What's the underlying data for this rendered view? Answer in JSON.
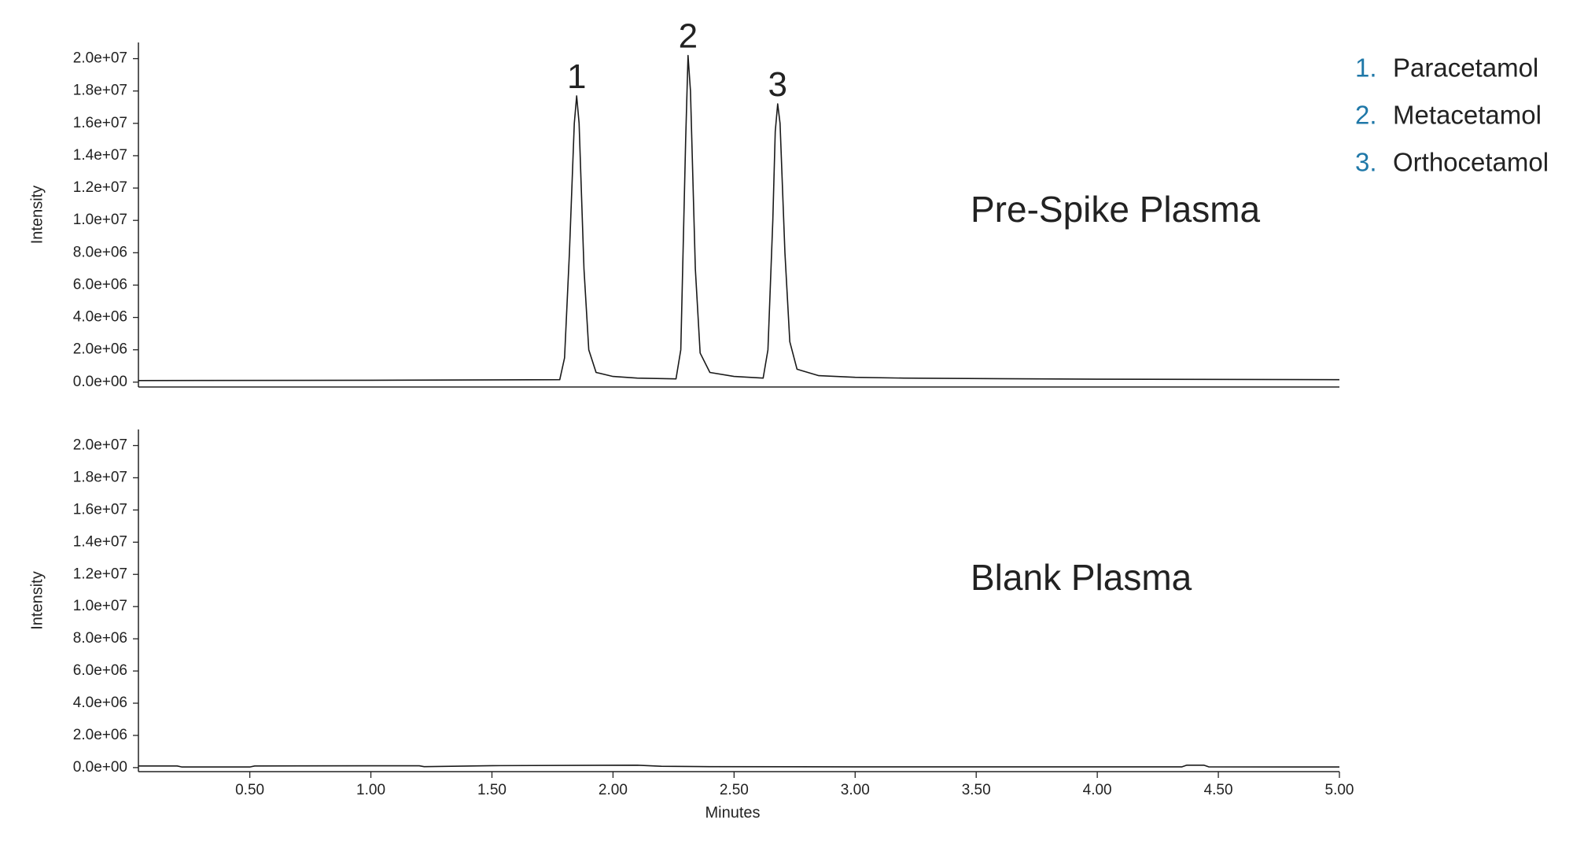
{
  "chart_data": [
    {
      "type": "line",
      "panel_label": "Pre-Spike Plasma",
      "ylabel": "Intensity",
      "xlim": [
        0.04,
        5.0
      ],
      "ylim": [
        -300000,
        21000000
      ],
      "yticks": [
        {
          "value": 0,
          "label": "0.0e+00"
        },
        {
          "value": 2000000,
          "label": "2.0e+06"
        },
        {
          "value": 4000000,
          "label": "4.0e+06"
        },
        {
          "value": 6000000,
          "label": "6.0e+06"
        },
        {
          "value": 8000000,
          "label": "8.0e+06"
        },
        {
          "value": 10000000,
          "label": "1.0e+07"
        },
        {
          "value": 12000000,
          "label": "1.2e+07"
        },
        {
          "value": 14000000,
          "label": "1.4e+07"
        },
        {
          "value": 16000000,
          "label": "1.6e+07"
        },
        {
          "value": 18000000,
          "label": "1.8e+07"
        },
        {
          "value": 20000000,
          "label": "2.0e+07"
        }
      ],
      "series": [
        {
          "color": "#1a1a1a",
          "x": [
            0.04,
            1.0,
            1.78,
            1.8,
            1.82,
            1.84,
            1.85,
            1.86,
            1.88,
            1.9,
            1.93,
            2.0,
            2.1,
            2.26,
            2.28,
            2.3,
            2.31,
            2.32,
            2.34,
            2.36,
            2.4,
            2.5,
            2.62,
            2.64,
            2.66,
            2.67,
            2.68,
            2.69,
            2.71,
            2.73,
            2.76,
            2.85,
            3.0,
            3.2,
            4.0,
            5.0
          ],
          "values": [
            100000,
            120000,
            150000,
            1500000,
            8000000,
            16000000,
            17700000,
            16000000,
            7000000,
            2000000,
            600000,
            350000,
            250000,
            200000,
            2000000,
            15000000,
            20200000,
            18000000,
            7000000,
            1800000,
            600000,
            350000,
            250000,
            2000000,
            10000000,
            15500000,
            17200000,
            16000000,
            8000000,
            2500000,
            800000,
            400000,
            300000,
            250000,
            180000,
            150000
          ]
        }
      ],
      "annotations": [
        {
          "text": "1",
          "x": 1.85,
          "y": 17700000
        },
        {
          "text": "2",
          "x": 2.31,
          "y": 20200000
        },
        {
          "text": "3",
          "x": 2.68,
          "y": 17200000
        }
      ],
      "legend_number_color": "#1f78a8",
      "legend": [
        {
          "number": "1.",
          "name": "Paracetamol"
        },
        {
          "number": "2.",
          "name": "Metacetamol"
        },
        {
          "number": "3.",
          "name": "Orthocetamol"
        }
      ]
    },
    {
      "type": "line",
      "panel_label": "Blank Plasma",
      "ylabel": "Intensity",
      "xlabel": "Minutes",
      "xlim": [
        0.04,
        5.0
      ],
      "xticks": [
        {
          "value": 0.5,
          "label": "0.50"
        },
        {
          "value": 1.0,
          "label": "1.00"
        },
        {
          "value": 1.5,
          "label": "1.50"
        },
        {
          "value": 2.0,
          "label": "2.00"
        },
        {
          "value": 2.5,
          "label": "2.50"
        },
        {
          "value": 3.0,
          "label": "3.00"
        },
        {
          "value": 3.5,
          "label": "3.50"
        },
        {
          "value": 4.0,
          "label": "4.00"
        },
        {
          "value": 4.5,
          "label": "4.50"
        },
        {
          "value": 5.0,
          "label": "5.00"
        }
      ],
      "ylim": [
        -250000,
        21000000
      ],
      "yticks": [
        {
          "value": 0,
          "label": "0.0e+00"
        },
        {
          "value": 2000000,
          "label": "2.0e+06"
        },
        {
          "value": 4000000,
          "label": "4.0e+06"
        },
        {
          "value": 6000000,
          "label": "6.0e+06"
        },
        {
          "value": 8000000,
          "label": "8.0e+06"
        },
        {
          "value": 10000000,
          "label": "1.0e+07"
        },
        {
          "value": 12000000,
          "label": "1.2e+07"
        },
        {
          "value": 14000000,
          "label": "1.4e+07"
        },
        {
          "value": 16000000,
          "label": "1.6e+07"
        },
        {
          "value": 18000000,
          "label": "1.8e+07"
        },
        {
          "value": 20000000,
          "label": "2.0e+07"
        }
      ],
      "series": [
        {
          "color": "#1a1a1a",
          "x": [
            0.04,
            0.2,
            0.22,
            0.5,
            0.52,
            1.0,
            1.2,
            1.22,
            1.5,
            2.1,
            2.2,
            2.4,
            3.0,
            4.35,
            4.37,
            4.44,
            4.46,
            5.0
          ],
          "values": [
            100000,
            100000,
            40000,
            40000,
            100000,
            110000,
            110000,
            60000,
            120000,
            150000,
            80000,
            60000,
            50000,
            50000,
            150000,
            150000,
            50000,
            40000
          ]
        }
      ]
    }
  ]
}
